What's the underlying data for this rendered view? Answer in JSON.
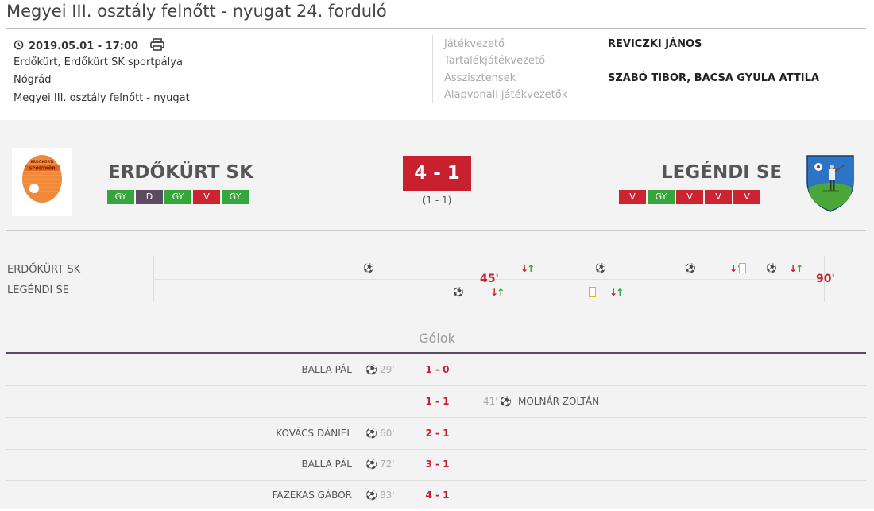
{
  "title": "Megyei III. osztály felnőtt - nyugat 24. forduló",
  "match_info": {
    "datetime": "2019.05.01 - 17:00",
    "venue": "Erdőkürt, Erdőkürt SK sportpálya",
    "county": "Nógrád",
    "league": "Megyei III. osztály felnőtt - nyugat"
  },
  "officials": {
    "referee_label": "Játékvezető",
    "referee": "REVICZKI JÁNOS",
    "reserve_label": "Tartalékjátékvezető",
    "reserve": "",
    "assistants_label": "Asszisztensek",
    "assistants": "SZABÓ TIBOR, BACSA GYULA ATTILA",
    "line_label": "Alapvonali játékvezetők",
    "line": ""
  },
  "home": {
    "name": "ERDŐKÜRT SK",
    "logo_text": "ERDŐKÜRTI SPORTKÖR",
    "form": [
      "GY",
      "D",
      "GY",
      "V",
      "GY"
    ]
  },
  "away": {
    "name": "LEGÉNDI SE",
    "form": [
      "V",
      "GY",
      "V",
      "V",
      "V"
    ]
  },
  "score": "4 - 1",
  "halftime": "(1 - 1)",
  "timeline": {
    "home_label": "ERDŐKÜRT SK",
    "away_label": "LEGÉNDI SE",
    "half_label": "45'",
    "full_label": "90'"
  },
  "goals_section": {
    "title": "Gólok",
    "rows": [
      {
        "home_player": "BALLA PÁL",
        "home_minute": "29'",
        "score": "1 - 0",
        "away_player": "",
        "away_minute": ""
      },
      {
        "home_player": "",
        "home_minute": "",
        "score": "1 - 1",
        "away_player": "MOLNÁR ZOLTÁN",
        "away_minute": "41'"
      },
      {
        "home_player": "KOVÁCS DÁNIEL",
        "home_minute": "60'",
        "score": "2 - 1",
        "away_player": "",
        "away_minute": ""
      },
      {
        "home_player": "BALLA PÁL",
        "home_minute": "72'",
        "score": "3 - 1",
        "away_player": "",
        "away_minute": ""
      },
      {
        "home_player": "FAZEKAS GÁBOR",
        "home_minute": "83'",
        "score": "4 - 1",
        "away_player": "",
        "away_minute": ""
      }
    ]
  },
  "colors": {
    "win": "#35a73a",
    "draw": "#5b4a60",
    "loss": "#cc2431",
    "score_bg": "#c9202f"
  }
}
